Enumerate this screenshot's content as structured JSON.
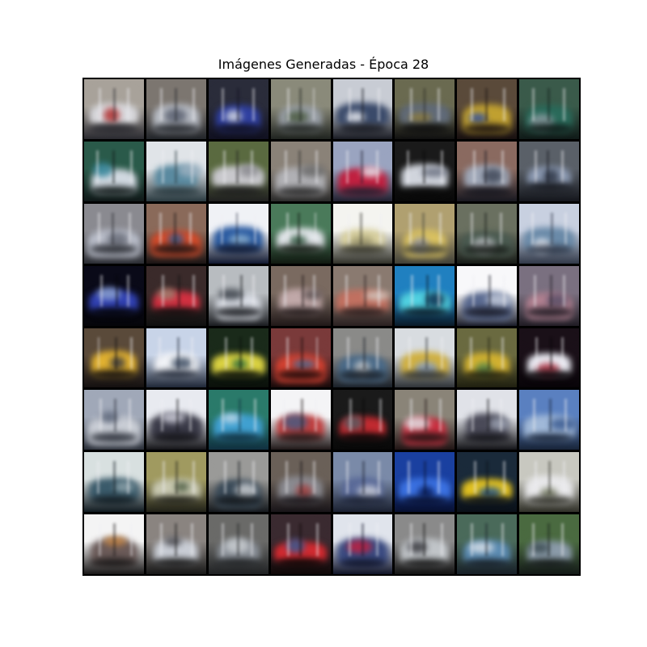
{
  "figure": {
    "title": "Imágenes Generadas - Época 28"
  },
  "grid": {
    "rows": 8,
    "cols": 8,
    "tiles": [
      {
        "bg": "#a8a29a",
        "body": "#d8d8dc",
        "accent": "#b03030",
        "dark": "#2a2a30"
      },
      {
        "bg": "#7c7670",
        "body": "#b8bcc4",
        "accent": "#5a6070",
        "dark": "#22252a"
      },
      {
        "bg": "#2a2c3a",
        "body": "#3040a0",
        "accent": "#d0d4e0",
        "dark": "#101020"
      },
      {
        "bg": "#8a8a7a",
        "body": "#9aa0a8",
        "accent": "#4a5a40",
        "dark": "#202420"
      },
      {
        "bg": "#c8ccd4",
        "body": "#3a4a6a",
        "accent": "#e8eaf0",
        "dark": "#1a1c24"
      },
      {
        "bg": "#6a6a50",
        "body": "#606a78",
        "accent": "#8a7a40",
        "dark": "#101010"
      },
      {
        "bg": "#5a4a3a",
        "body": "#c0a030",
        "accent": "#3050a0",
        "dark": "#181010"
      },
      {
        "bg": "#3a5a4a",
        "body": "#2a6a5a",
        "accent": "#8a9aa0",
        "dark": "#101a18"
      },
      {
        "bg": "#2a5a4a",
        "body": "#d0d8e0",
        "accent": "#3a8aa0",
        "dark": "#101818"
      },
      {
        "bg": "#e0e4e8",
        "body": "#5a8aa0",
        "accent": "#9ab0c0",
        "dark": "#2a3a40"
      },
      {
        "bg": "#5a6a40",
        "body": "#c8c8cc",
        "accent": "#8a8a90",
        "dark": "#202020"
      },
      {
        "bg": "#8a8278",
        "body": "#b0b0b4",
        "accent": "#6a6a6a",
        "dark": "#2a2a2a"
      },
      {
        "bg": "#9aa4c0",
        "body": "#c02040",
        "accent": "#e8e8f0",
        "dark": "#202030"
      },
      {
        "bg": "#1a1a1a",
        "body": "#d0d4dc",
        "accent": "#6a7080",
        "dark": "#080808"
      },
      {
        "bg": "#8a6a60",
        "body": "#a0a8b8",
        "accent": "#404858",
        "dark": "#181820"
      },
      {
        "bg": "#5a6068",
        "body": "#8a98b0",
        "accent": "#303848",
        "dark": "#14161c"
      },
      {
        "bg": "#8a8a90",
        "body": "#b8bcc8",
        "accent": "#6a6e7a",
        "dark": "#2a2c32"
      },
      {
        "bg": "#8a6a5a",
        "body": "#d04a2a",
        "accent": "#3a5a8a",
        "dark": "#1a1414"
      },
      {
        "bg": "#f0f2f6",
        "body": "#2a5aa0",
        "accent": "#8ab0d0",
        "dark": "#101830"
      },
      {
        "bg": "#4a7a5a",
        "body": "#e0e4e8",
        "accent": "#305a40",
        "dark": "#101810"
      },
      {
        "bg": "#f4f4f0",
        "body": "#d8d0a0",
        "accent": "#a09a70",
        "dark": "#303028"
      },
      {
        "bg": "#b0a070",
        "body": "#d8c060",
        "accent": "#9a9aa0",
        "dark": "#404038"
      },
      {
        "bg": "#6a7060",
        "body": "#4a5a50",
        "accent": "#c0c4c8",
        "dark": "#181c18"
      },
      {
        "bg": "#c8d0e0",
        "body": "#6a8aa8",
        "accent": "#e8ecf4",
        "dark": "#303848"
      },
      {
        "bg": "#0a0a18",
        "body": "#3040b0",
        "accent": "#8aa0d0",
        "dark": "#05050a"
      },
      {
        "bg": "#3a2a2a",
        "body": "#d03040",
        "accent": "#a08070",
        "dark": "#101010"
      },
      {
        "bg": "#b8bcc0",
        "body": "#d8dce4",
        "accent": "#3a4048",
        "dark": "#1a1c20"
      },
      {
        "bg": "#7a6a60",
        "body": "#c0a8a8",
        "accent": "#5a5050",
        "dark": "#201818"
      },
      {
        "bg": "#8a7a70",
        "body": "#c07060",
        "accent": "#d0c8c0",
        "dark": "#2a2020"
      },
      {
        "bg": "#2080c0",
        "body": "#50d0e0",
        "accent": "#103050",
        "dark": "#0a1a28"
      },
      {
        "bg": "#f8f8fa",
        "body": "#5a6a90",
        "accent": "#c0c8d8",
        "dark": "#1a1c28"
      },
      {
        "bg": "#7a7080",
        "body": "#b08090",
        "accent": "#5a5068",
        "dark": "#201c24"
      },
      {
        "bg": "#5a4a3a",
        "body": "#e0b030",
        "accent": "#3a3a40",
        "dark": "#141010"
      },
      {
        "bg": "#c8d4e8",
        "body": "#f0f2f6",
        "accent": "#3a4a60",
        "dark": "#202838"
      },
      {
        "bg": "#1a2a1a",
        "body": "#d8d040",
        "accent": "#2a6a3a",
        "dark": "#0a100a"
      },
      {
        "bg": "#7a3a3a",
        "body": "#d04030",
        "accent": "#4a6a90",
        "dark": "#180a0a"
      },
      {
        "bg": "#8a8a88",
        "body": "#4a6a88",
        "accent": "#c0c4c8",
        "dark": "#1a2028"
      },
      {
        "bg": "#d8dce0",
        "body": "#d0b040",
        "accent": "#8aa0c0",
        "dark": "#303438"
      },
      {
        "bg": "#6a6a40",
        "body": "#d0b030",
        "accent": "#5a8a4a",
        "dark": "#202010"
      },
      {
        "bg": "#1a1018",
        "body": "#e8e8f0",
        "accent": "#b03040",
        "dark": "#080408"
      },
      {
        "bg": "#a0a8b8",
        "body": "#c8ccd4",
        "accent": "#5a6478",
        "dark": "#2a2e38"
      },
      {
        "bg": "#e8eaf0",
        "body": "#3a3a48",
        "accent": "#d0d0dc",
        "dark": "#141418"
      },
      {
        "bg": "#2a7a6a",
        "body": "#40a0d0",
        "accent": "#c0d8e8",
        "dark": "#103040"
      },
      {
        "bg": "#f4f4f6",
        "body": "#c04040",
        "accent": "#4a5a80",
        "dark": "#201818"
      },
      {
        "bg": "#1a1a1a",
        "body": "#c02a30",
        "accent": "#5a5a60",
        "dark": "#080808"
      },
      {
        "bg": "#8a8478",
        "body": "#c83040",
        "accent": "#e0e0e4",
        "dark": "#201414"
      },
      {
        "bg": "#e0e2e8",
        "body": "#4a4a58",
        "accent": "#9aa0b0",
        "dark": "#141418"
      },
      {
        "bg": "#5a80c0",
        "body": "#a0b8d8",
        "accent": "#3a5a90",
        "dark": "#182438"
      },
      {
        "bg": "#d8e0e0",
        "body": "#3a5a6a",
        "accent": "#8aa0a8",
        "dark": "#101a20"
      },
      {
        "bg": "#a09a60",
        "body": "#c8c8b0",
        "accent": "#4a5a40",
        "dark": "#202018"
      },
      {
        "bg": "#9a9a98",
        "body": "#3a4a58",
        "accent": "#c8ccd0",
        "dark": "#14181c"
      },
      {
        "bg": "#6a6058",
        "body": "#8a8a90",
        "accent": "#a04040",
        "dark": "#181418"
      },
      {
        "bg": "#7a8aa8",
        "body": "#5a6a98",
        "accent": "#c8ccd8",
        "dark": "#1a2030"
      },
      {
        "bg": "#1a40a0",
        "body": "#3a70e0",
        "accent": "#0a2060",
        "dark": "#081030"
      },
      {
        "bg": "#1a2a3a",
        "body": "#e0c020",
        "accent": "#2a5a8a",
        "dark": "#0a1018"
      },
      {
        "bg": "#c8c8c0",
        "body": "#e8e8ea",
        "accent": "#7a8068",
        "dark": "#303028"
      },
      {
        "bg": "#f4f4f4",
        "body": "#6a5a58",
        "accent": "#c08040",
        "dark": "#1a1818"
      },
      {
        "bg": "#8a8480",
        "body": "#c8ccd4",
        "accent": "#4a4a50",
        "dark": "#181818"
      },
      {
        "bg": "#6a6a68",
        "body": "#8a9098",
        "accent": "#c8ccd0",
        "dark": "#202224"
      },
      {
        "bg": "#3a2a30",
        "body": "#d02a30",
        "accent": "#3a5a90",
        "dark": "#100808"
      },
      {
        "bg": "#e0e4ec",
        "body": "#3a4a80",
        "accent": "#c02040",
        "dark": "#101428"
      },
      {
        "bg": "#8a8a8a",
        "body": "#c0c4c8",
        "accent": "#3a3a40",
        "dark": "#141414"
      },
      {
        "bg": "#4a6a5a",
        "body": "#5a8ab0",
        "accent": "#d8e0e8",
        "dark": "#182028"
      },
      {
        "bg": "#4a6a40",
        "body": "#8a9aa8",
        "accent": "#3a4a50",
        "dark": "#141a18"
      }
    ]
  }
}
